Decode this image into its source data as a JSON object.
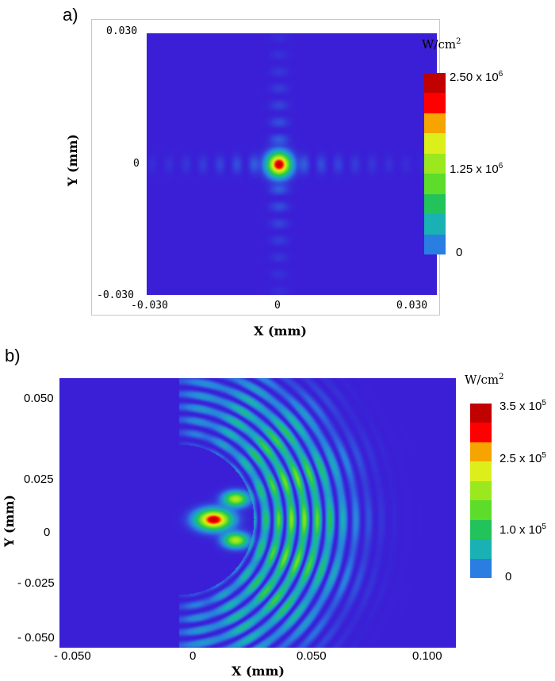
{
  "panels": [
    {
      "label": "a)",
      "colorbar_unit_base": "W/cm",
      "colorbar_unit_exp": "2",
      "colorbar_labels": [
        {
          "text": "2.50 x 10",
          "exp": "6"
        },
        {
          "text": "1.25 x 10",
          "exp": "6"
        },
        {
          "text": "0",
          "exp": ""
        }
      ],
      "x_ticks": [
        "-0.030",
        "0",
        "0.030"
      ],
      "y_ticks": [
        "0.030",
        "0",
        "-0.030"
      ],
      "xlabel": "X (mm)",
      "ylabel": "Y (mm)"
    },
    {
      "label": "b)",
      "colorbar_unit_base": "W/cm",
      "colorbar_unit_exp": "2",
      "colorbar_labels": [
        {
          "text": "3.5 x 10",
          "exp": "5"
        },
        {
          "text": "2.5 x 10",
          "exp": "5"
        },
        {
          "text": "1.0 x 10",
          "exp": "5"
        },
        {
          "text": "0",
          "exp": ""
        }
      ],
      "x_ticks": [
        "- 0.050",
        "0",
        "0.050",
        "0.100"
      ],
      "y_ticks": [
        "0.050",
        "0.025",
        "0",
        "- 0.025",
        "- 0.050"
      ],
      "xlabel": "X (mm)",
      "ylabel": "Y (mm)"
    }
  ],
  "colors": {
    "background": "#3a1fd6",
    "scale": [
      "#2a7de1",
      "#19b1b4",
      "#22c35a",
      "#5ddc2a",
      "#9be81f",
      "#dcef1a",
      "#f5a400",
      "#ff0000",
      "#c10000"
    ]
  },
  "chart_data": [
    {
      "type": "heatmap",
      "title": "",
      "xlabel": "X (mm)",
      "ylabel": "Y (mm)",
      "colorbar_label": "W/cm2",
      "xlim": [
        -0.03,
        0.03
      ],
      "ylim": [
        -0.03,
        0.03
      ],
      "zlim": [
        0,
        2500000
      ],
      "description_values": {
        "peak_position": [
          0,
          0
        ],
        "peak_intensity": 2500000,
        "side_lobes_x": [
          -0.0075,
          0.0075,
          -0.015,
          0.015
        ],
        "side_lobes_y": [
          -0.0075,
          0.0075,
          -0.015,
          0.015
        ]
      }
    },
    {
      "type": "heatmap",
      "title": "",
      "xlabel": "X (mm)",
      "ylabel": "Y (mm)",
      "colorbar_label": "W/cm2",
      "xlim": [
        -0.06,
        0.11
      ],
      "ylim": [
        -0.06,
        0.06
      ],
      "zlim": [
        0,
        350000
      ],
      "description_values": {
        "peak_position": [
          0.01,
          0
        ],
        "peak_intensity": 350000,
        "lobe_positions": [
          [
            0.02,
            0.008
          ],
          [
            0.02,
            -0.008
          ]
        ],
        "fringe_x_range": [
          0.025,
          0.075
        ]
      }
    }
  ]
}
